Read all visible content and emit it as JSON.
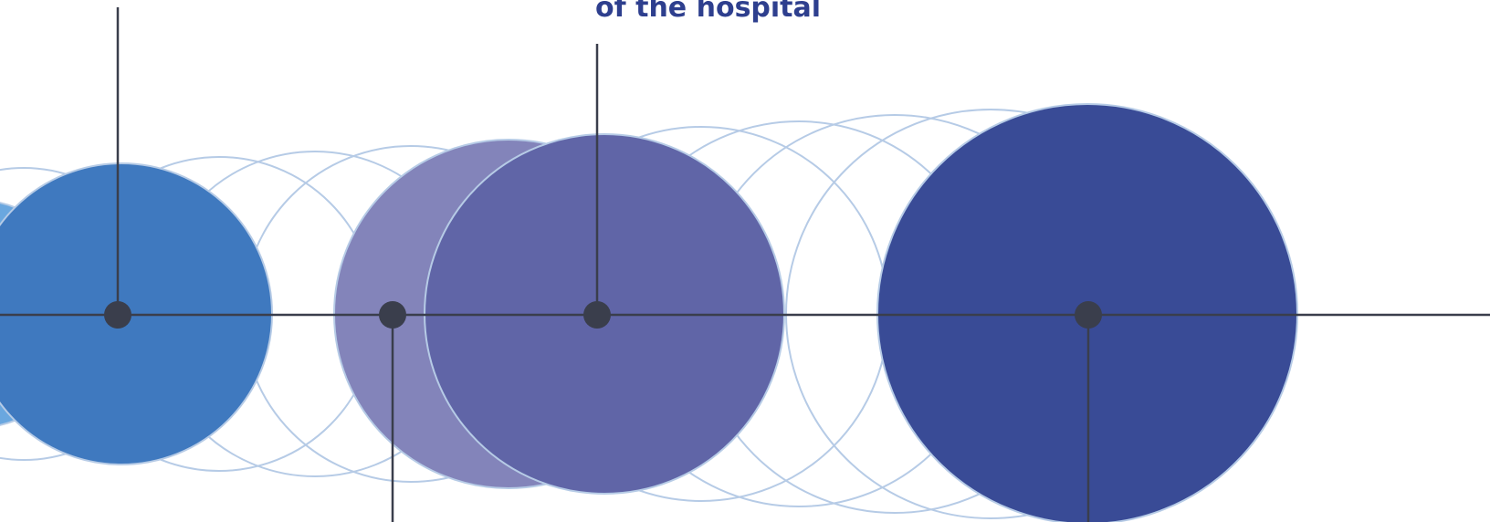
{
  "colors": {
    "background": "#ffffff",
    "outline_circle_stroke": "#b6cbe6",
    "axis_line": "#3a3e4c",
    "marker_dot": "#3a3e4c",
    "caption_text": "#2e3f8e",
    "circle_light_blue": "#6aa7df",
    "circle_blue": "#3f79bf",
    "circle_lavender": "#8384ba",
    "circle_purple": "#6065a7",
    "circle_navy": "#394b96"
  },
  "caption": {
    "text": "of the hospital"
  }
}
